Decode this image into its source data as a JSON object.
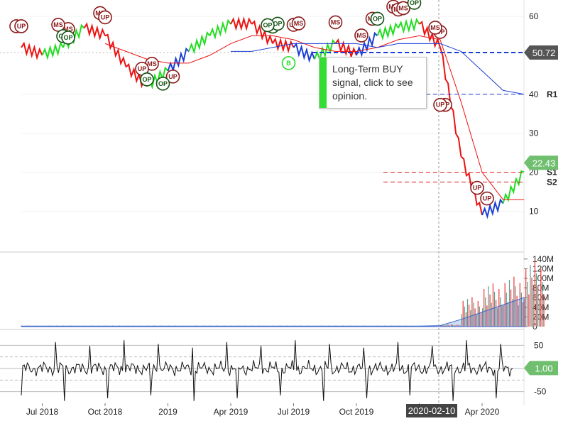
{
  "chart_data": [
    {
      "type": "line",
      "panel": "price",
      "x": [
        "2018-06",
        "2018-07",
        "2018-08",
        "2018-09",
        "2018-10",
        "2018-11",
        "2018-12",
        "2019-01",
        "2019-02",
        "2019-03",
        "2019-04",
        "2019-05",
        "2019-06",
        "2019-07",
        "2019-08",
        "2019-09",
        "2019-10",
        "2019-11",
        "2019-12",
        "2020-01",
        "2020-02",
        "2020-03",
        "2020-04",
        "2020-05",
        "2020-06"
      ],
      "series": [
        {
          "values": [
            52,
            50,
            52,
            57,
            55,
            47,
            42,
            46,
            51,
            55,
            58,
            58,
            53,
            52,
            49,
            53,
            50,
            55,
            57,
            58,
            52,
            24,
            9,
            12,
            20
          ]
        },
        {
          "values": [
            null,
            null,
            null,
            null,
            53,
            51,
            49,
            48,
            48,
            50,
            53,
            55,
            55,
            54,
            52,
            51,
            51,
            52,
            54,
            55,
            54,
            38,
            20,
            13,
            13
          ]
        },
        {
          "values": [
            null,
            null,
            null,
            null,
            null,
            null,
            null,
            null,
            null,
            null,
            51,
            51,
            52,
            53,
            53,
            53,
            53,
            52,
            53,
            53,
            53,
            51,
            46,
            41,
            40
          ]
        }
      ],
      "yticks": [
        10,
        20,
        30,
        40,
        60
      ],
      "ylim": [
        5,
        62
      ],
      "xticks": [
        "Jul 2018",
        "Oct 2018",
        "2019",
        "Apr 2019",
        "Jul 2019",
        "Oct 2019",
        "2020",
        "Apr 2020"
      ],
      "levels": [
        {
          "name": "R1",
          "value": 40,
          "color": "#1a3fd6"
        },
        {
          "name": "S1",
          "value": 20,
          "color": "#e01a1a"
        },
        {
          "name": "S2",
          "value": 17.5,
          "color": "#e01a1a"
        }
      ],
      "badges": [
        {
          "label": "50.72",
          "value": 50.72,
          "color": "#555555"
        },
        {
          "label": "22.43",
          "value": 22.43,
          "color": "#6fbf6f"
        }
      ],
      "signals": [
        {
          "x": "2018-06",
          "label": "L",
          "tone": "neg"
        },
        {
          "x": "2018-06",
          "label": "UP",
          "tone": "neg"
        },
        {
          "x": "2018-08",
          "label": "MS",
          "tone": "neg"
        },
        {
          "x": "2018-08",
          "label": "MS",
          "tone": "neg"
        },
        {
          "x": "2018-08",
          "label": "OP",
          "tone": "pos"
        },
        {
          "x": "2018-08",
          "label": "OP",
          "tone": "pos"
        },
        {
          "x": "2018-10",
          "label": "MS",
          "tone": "neg"
        },
        {
          "x": "2018-10",
          "label": "UP",
          "tone": "neg"
        },
        {
          "x": "2018-12",
          "label": "MS",
          "tone": "neg"
        },
        {
          "x": "2018-12",
          "label": "UP",
          "tone": "neg"
        },
        {
          "x": "2018-12",
          "label": "OP",
          "tone": "pos"
        },
        {
          "x": "2019-01",
          "label": "UP",
          "tone": "neg"
        },
        {
          "x": "2019-01",
          "label": "OP",
          "tone": "pos"
        },
        {
          "x": "2019-06",
          "label": "M",
          "tone": "pos"
        },
        {
          "x": "2019-06",
          "label": "OP",
          "tone": "pos"
        },
        {
          "x": "2019-06",
          "label": "OP",
          "tone": "pos"
        },
        {
          "x": "2019-07",
          "label": "UP",
          "tone": "neg"
        },
        {
          "x": "2019-07",
          "label": "MS",
          "tone": "neg"
        },
        {
          "x": "2019-07",
          "label": "B",
          "tone": "buy"
        },
        {
          "x": "2019-09",
          "label": "MS",
          "tone": "neg"
        },
        {
          "x": "2019-10",
          "label": "MS",
          "tone": "neg"
        },
        {
          "x": "2019-11",
          "label": "MS",
          "tone": "neg"
        },
        {
          "x": "2019-11",
          "label": "OP",
          "tone": "pos"
        },
        {
          "x": "2019-12",
          "label": "MS",
          "tone": "neg"
        },
        {
          "x": "2019-12",
          "label": "MS",
          "tone": "neg"
        },
        {
          "x": "2019-12",
          "label": "MS",
          "tone": "neg"
        },
        {
          "x": "2019-12",
          "label": "MS",
          "tone": "neg"
        },
        {
          "x": "2020-01",
          "label": "OP",
          "tone": "pos"
        },
        {
          "x": "2020-02",
          "label": "OP",
          "tone": "neg"
        },
        {
          "x": "2020-02",
          "label": "UP",
          "tone": "neg"
        },
        {
          "x": "2020-02",
          "label": "MS",
          "tone": "neg"
        },
        {
          "x": "2020-02",
          "label": "UP",
          "tone": "neg"
        },
        {
          "x": "2020-04",
          "label": "UP",
          "tone": "neg"
        },
        {
          "x": "2020-04",
          "label": "UP",
          "tone": "neg"
        }
      ]
    },
    {
      "type": "bar",
      "panel": "volume",
      "yticks": [
        "0",
        "20M",
        "40M",
        "60M",
        "80M",
        "100M",
        "120M",
        "140M"
      ],
      "ylim": [
        0,
        150
      ],
      "x": [
        "2018-06",
        "2018-07",
        "2018-08",
        "2018-09",
        "2018-10",
        "2018-11",
        "2018-12",
        "2019-01",
        "2019-02",
        "2019-03",
        "2019-04",
        "2019-05",
        "2019-06",
        "2019-07",
        "2019-08",
        "2019-09",
        "2019-10",
        "2019-11",
        "2019-12",
        "2020-01",
        "2020-02",
        "2020-03",
        "2020-04",
        "2020-05",
        "2020-06"
      ],
      "values": [
        2,
        2,
        2,
        2,
        2,
        2,
        2,
        2,
        2,
        2,
        2,
        2,
        2,
        2,
        2,
        2,
        2,
        2,
        2,
        2,
        5,
        65,
        95,
        110,
        145
      ],
      "moving_average": [
        1,
        1,
        1,
        1,
        1,
        1,
        1,
        1,
        1,
        1,
        1,
        1,
        1,
        1,
        1,
        1,
        1,
        1,
        1,
        1,
        2,
        15,
        30,
        45,
        60
      ]
    },
    {
      "type": "line",
      "panel": "oscillator",
      "yticks": [
        50,
        -50
      ],
      "ylim": [
        -75,
        75
      ],
      "badge": {
        "label": "1.00",
        "value": 1.0
      }
    }
  ],
  "tooltip": {
    "text": "Long-Term BUY signal, click to see opinion."
  },
  "crosshair_date": "2020-02-10",
  "colors": {
    "price_up": "#22dd22",
    "price_down": "#ee1111",
    "price_neutral": "#1a3fd6",
    "ma_fast": "#ee1111",
    "ma_slow": "#1a3fd6",
    "neg_marker": "#8b1a1a",
    "pos_marker": "#145214",
    "buy_marker": "#22dd22"
  }
}
